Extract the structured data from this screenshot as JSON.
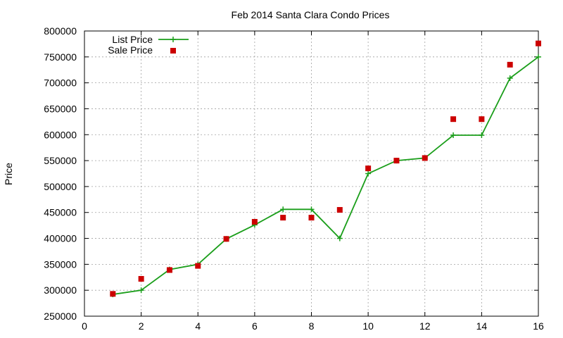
{
  "chart_data": {
    "type": "line",
    "title": "Feb 2014 Santa Clara Condo Prices",
    "xlabel": "",
    "ylabel": "Price",
    "xlim": [
      0,
      16
    ],
    "ylim": [
      250000,
      800000
    ],
    "xticks": [
      "0",
      "2",
      "4",
      "6",
      "8",
      "10",
      "12",
      "14",
      "16"
    ],
    "yticks": [
      "250000",
      "300000",
      "350000",
      "400000",
      "450000",
      "500000",
      "550000",
      "600000",
      "650000",
      "700000",
      "750000",
      "800000"
    ],
    "grid": true,
    "legend_position": "top-left",
    "x": [
      1,
      2,
      3,
      4,
      5,
      6,
      7,
      8,
      9,
      10,
      11,
      12,
      13,
      14,
      15,
      16
    ],
    "series": [
      {
        "name": "List Price",
        "style": "linespoints",
        "marker": "plus",
        "color": "#1a9e1a",
        "values": [
          292000,
          300000,
          340000,
          350000,
          399000,
          426000,
          456000,
          456000,
          400000,
          525000,
          550000,
          555000,
          599000,
          599000,
          709000,
          750000
        ]
      },
      {
        "name": "Sale Price",
        "style": "points",
        "marker": "square",
        "color": "#cc0000",
        "values": [
          293000,
          322000,
          339000,
          347000,
          399000,
          432000,
          440000,
          440000,
          455000,
          535000,
          550000,
          555000,
          630000,
          630000,
          735000,
          776000
        ]
      }
    ]
  }
}
